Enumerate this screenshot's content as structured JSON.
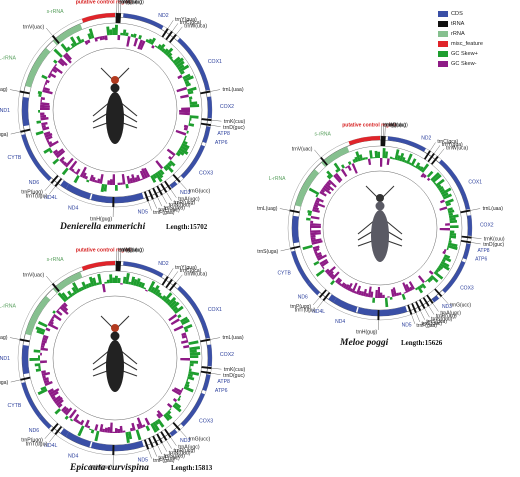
{
  "colors": {
    "cds": "#3a4fa6",
    "trna": "#111111",
    "rrna": "#86c08f",
    "misc": "#e0242a",
    "gc_pos": "#1e9e2e",
    "gc_neg": "#8e1b86",
    "gene_label": "#2b3f9c",
    "rrna_label": "#5aa05f",
    "control_label": "#d62020"
  },
  "legend": [
    {
      "label": "CDS",
      "key": "cds"
    },
    {
      "label": "tRNA",
      "key": "trna"
    },
    {
      "label": "rRNA",
      "key": "rrna"
    },
    {
      "label": "misc_feature",
      "key": "misc"
    },
    {
      "label": "GC Skew+",
      "key": "gc_pos"
    },
    {
      "label": "GC Skew-",
      "key": "gc_neg"
    }
  ],
  "maps": [
    {
      "species": "Denierella emmerichi",
      "length_text": "Length:15702",
      "labels": [
        {
          "t": "putative control region",
          "type": "control",
          "a": -6
        },
        {
          "t": "trnI(gau)",
          "type": "trna",
          "a": 1
        },
        {
          "t": "trnM(cau)",
          "type": "trna",
          "a": 2
        },
        {
          "t": "trnQ(uug)",
          "type": "trna",
          "a": 3
        },
        {
          "t": "ND2",
          "type": "cds",
          "a": 24
        },
        {
          "t": "trnY(gua)",
          "type": "trna",
          "a": 33
        },
        {
          "t": "trnC(gca)",
          "type": "trna",
          "a": 36
        },
        {
          "t": "trnW(uca)",
          "type": "trna",
          "a": 39
        },
        {
          "t": "COX1",
          "type": "cds",
          "a": 62
        },
        {
          "t": "trnL(uaa)",
          "type": "trna",
          "a": 79
        },
        {
          "t": "COX2",
          "type": "cds",
          "a": 88
        },
        {
          "t": "trnK(cuu)",
          "type": "trna",
          "a": 96
        },
        {
          "t": "trnD(guc)",
          "type": "trna",
          "a": 99
        },
        {
          "t": "ATP8",
          "type": "cds",
          "a": 103
        },
        {
          "t": "ATP6",
          "type": "cds",
          "a": 108
        },
        {
          "t": "COX3",
          "type": "cds",
          "a": 127
        },
        {
          "t": "trnG(ucc)",
          "type": "trna",
          "a": 138
        },
        {
          "t": "ND3",
          "type": "cds",
          "a": 142
        },
        {
          "t": "trnA(ugc)",
          "type": "trna",
          "a": 145
        },
        {
          "t": "trnR(ucg)",
          "type": "trna",
          "a": 148
        },
        {
          "t": "trnN(guu)",
          "type": "trna",
          "a": 151
        },
        {
          "t": "trnS(gcu)",
          "type": "trna",
          "a": 154
        },
        {
          "t": "trnE(uuc)",
          "type": "trna",
          "a": 157
        },
        {
          "t": "trnF(gaa)",
          "type": "trna",
          "a": 160
        },
        {
          "t": "ND5",
          "type": "cds",
          "a": 168
        },
        {
          "t": "trnH(gug)",
          "type": "trna",
          "a": 181
        },
        {
          "t": "ND4",
          "type": "cds",
          "a": 200
        },
        {
          "t": "ND4L",
          "type": "cds",
          "a": 213
        },
        {
          "t": "trnT(ugu)",
          "type": "trna",
          "a": 218
        },
        {
          "t": "trnP(ugg)",
          "type": "trna",
          "a": 221
        },
        {
          "t": "ND6",
          "type": "cds",
          "a": 226
        },
        {
          "t": "CYTB",
          "type": "cds",
          "a": 243
        },
        {
          "t": "trnS(uga)",
          "type": "trna",
          "a": 257
        },
        {
          "t": "ND1",
          "type": "cds",
          "a": 270
        },
        {
          "t": "trnL(uag)",
          "type": "trna",
          "a": 281
        },
        {
          "t": "L-rRNA",
          "type": "rrna",
          "a": 298
        },
        {
          "t": "trnV(uac)",
          "type": "trna",
          "a": 320
        },
        {
          "t": "s-rRNA",
          "type": "rrna",
          "a": 333
        }
      ]
    },
    {
      "species": "Meloe poggi",
      "length_text": "Length:15626",
      "labels": [
        {
          "t": "putative control region",
          "type": "control",
          "a": -6
        },
        {
          "t": "trnI(gau)",
          "type": "trna",
          "a": 1
        },
        {
          "t": "trnM(cau)",
          "type": "trna",
          "a": 2
        },
        {
          "t": "trnQ(uug)",
          "type": "trna",
          "a": 3
        },
        {
          "t": "ND2",
          "type": "cds",
          "a": 24
        },
        {
          "t": "trnC(gca)",
          "type": "trna",
          "a": 33
        },
        {
          "t": "trnY(gua)",
          "type": "trna",
          "a": 36
        },
        {
          "t": "trnW(uca)",
          "type": "trna",
          "a": 39
        },
        {
          "t": "COX1",
          "type": "cds",
          "a": 62
        },
        {
          "t": "trnL(uaa)",
          "type": "trna",
          "a": 79
        },
        {
          "t": "COX2",
          "type": "cds",
          "a": 88
        },
        {
          "t": "trnK(cuu)",
          "type": "trna",
          "a": 96
        },
        {
          "t": "trnD(guc)",
          "type": "trna",
          "a": 99
        },
        {
          "t": "ATP8",
          "type": "cds",
          "a": 103
        },
        {
          "t": "ATP6",
          "type": "cds",
          "a": 108
        },
        {
          "t": "COX3",
          "type": "cds",
          "a": 127
        },
        {
          "t": "trnG(ucc)",
          "type": "trna",
          "a": 138
        },
        {
          "t": "ND3",
          "type": "cds",
          "a": 142
        },
        {
          "t": "trnA(ugc)",
          "type": "trna",
          "a": 145
        },
        {
          "t": "trnR(ucg)",
          "type": "trna",
          "a": 148
        },
        {
          "t": "trnN(guu)",
          "type": "trna",
          "a": 151
        },
        {
          "t": "trnS(gcu)",
          "type": "trna",
          "a": 154
        },
        {
          "t": "trnE(uuc)",
          "type": "trna",
          "a": 157
        },
        {
          "t": "trnF(gaa)",
          "type": "trna",
          "a": 160
        },
        {
          "t": "ND5",
          "type": "cds",
          "a": 168
        },
        {
          "t": "trnH(gug)",
          "type": "trna",
          "a": 181
        },
        {
          "t": "ND4",
          "type": "cds",
          "a": 200
        },
        {
          "t": "ND4L",
          "type": "cds",
          "a": 213
        },
        {
          "t": "trnT(ugu)",
          "type": "trna",
          "a": 218
        },
        {
          "t": "trnP(ugg)",
          "type": "trna",
          "a": 221
        },
        {
          "t": "ND6",
          "type": "cds",
          "a": 226
        },
        {
          "t": "CYTB",
          "type": "cds",
          "a": 243
        },
        {
          "t": "trnS(uga)",
          "type": "trna",
          "a": 257
        },
        {
          "t": "trnL(uag)",
          "type": "trna",
          "a": 281
        },
        {
          "t": "L-rRNA",
          "type": "rrna",
          "a": 298
        },
        {
          "t": "trnV(uac)",
          "type": "trna",
          "a": 320
        },
        {
          "t": "s-rRNA",
          "type": "rrna",
          "a": 333
        }
      ]
    },
    {
      "species": "Epicauta curvispina",
      "length_text": "Length:15813",
      "labels": [
        {
          "t": "putative control region",
          "type": "control",
          "a": -6
        },
        {
          "t": "trnI(gau)",
          "type": "trna",
          "a": 1
        },
        {
          "t": "trnM(cau)",
          "type": "trna",
          "a": 2
        },
        {
          "t": "trnQ(uug)",
          "type": "trna",
          "a": 3
        },
        {
          "t": "ND2",
          "type": "cds",
          "a": 24
        },
        {
          "t": "trnY(gua)",
          "type": "trna",
          "a": 33
        },
        {
          "t": "trnC(gca)",
          "type": "trna",
          "a": 36
        },
        {
          "t": "trnW(uca)",
          "type": "trna",
          "a": 39
        },
        {
          "t": "COX1",
          "type": "cds",
          "a": 62
        },
        {
          "t": "trnL(uaa)",
          "type": "trna",
          "a": 79
        },
        {
          "t": "COX2",
          "type": "cds",
          "a": 88
        },
        {
          "t": "trnK(cuu)",
          "type": "trna",
          "a": 96
        },
        {
          "t": "trnD(guc)",
          "type": "trna",
          "a": 99
        },
        {
          "t": "ATP8",
          "type": "cds",
          "a": 103
        },
        {
          "t": "ATP6",
          "type": "cds",
          "a": 108
        },
        {
          "t": "COX3",
          "type": "cds",
          "a": 127
        },
        {
          "t": "trnG(ucc)",
          "type": "trna",
          "a": 138
        },
        {
          "t": "ND3",
          "type": "cds",
          "a": 142
        },
        {
          "t": "trnA(ugc)",
          "type": "trna",
          "a": 145
        },
        {
          "t": "trnR(ucg)",
          "type": "trna",
          "a": 148
        },
        {
          "t": "trnN(guu)",
          "type": "trna",
          "a": 151
        },
        {
          "t": "trnS(gcu)",
          "type": "trna",
          "a": 154
        },
        {
          "t": "trnE(uuc)",
          "type": "trna",
          "a": 157
        },
        {
          "t": "trnF(gaa)",
          "type": "trna",
          "a": 160
        },
        {
          "t": "ND5",
          "type": "cds",
          "a": 168
        },
        {
          "t": "trnH(gug)",
          "type": "trna",
          "a": 181
        },
        {
          "t": "ND4",
          "type": "cds",
          "a": 200
        },
        {
          "t": "ND4L",
          "type": "cds",
          "a": 213
        },
        {
          "t": "trnT(ugu)",
          "type": "trna",
          "a": 218
        },
        {
          "t": "trnP(ugg)",
          "type": "trna",
          "a": 221
        },
        {
          "t": "ND6",
          "type": "cds",
          "a": 226
        },
        {
          "t": "CYTB",
          "type": "cds",
          "a": 243
        },
        {
          "t": "trnS(uga)",
          "type": "trna",
          "a": 257
        },
        {
          "t": "ND1",
          "type": "cds",
          "a": 270
        },
        {
          "t": "trnL(uag)",
          "type": "trna",
          "a": 281
        },
        {
          "t": "L-rRNA",
          "type": "rrna",
          "a": 298
        },
        {
          "t": "trnV(uac)",
          "type": "trna",
          "a": 320
        },
        {
          "t": "s-rRNA",
          "type": "rrna",
          "a": 333
        }
      ]
    }
  ]
}
